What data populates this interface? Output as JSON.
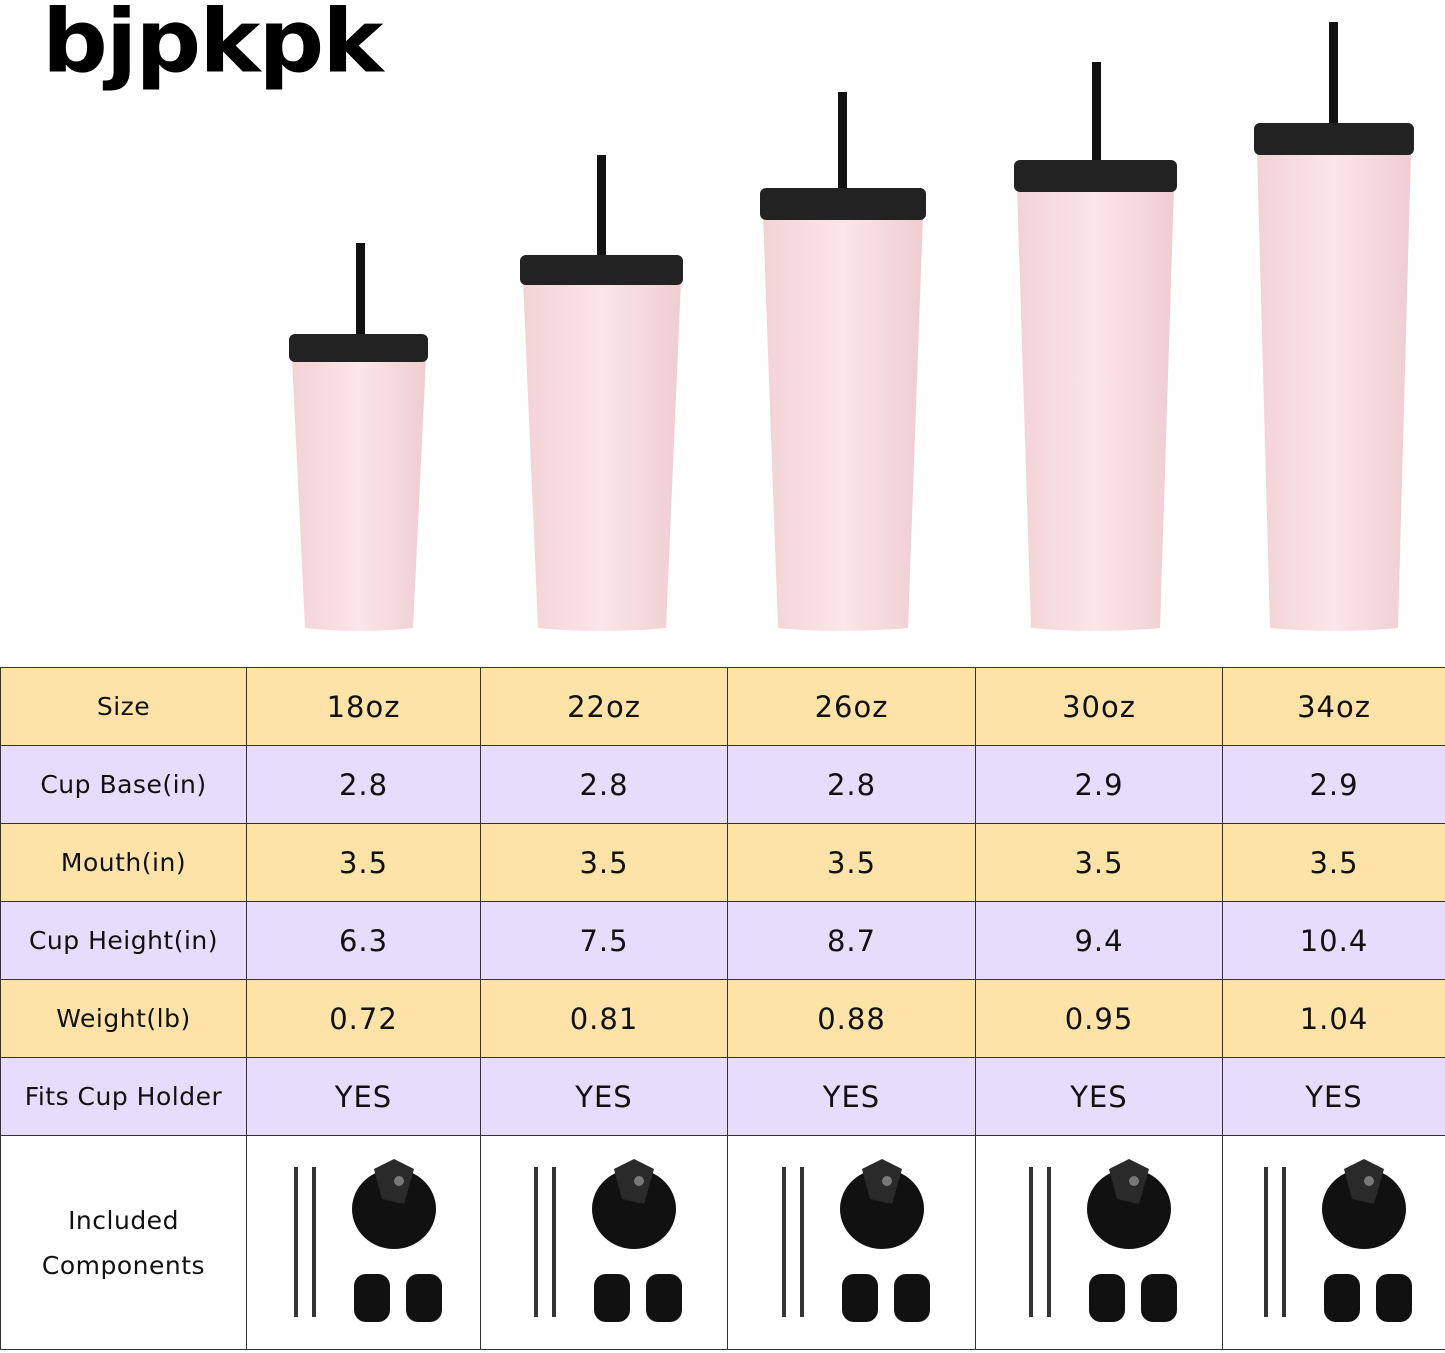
{
  "brand": "bjpkpk",
  "table": {
    "header": [
      "Size",
      "18oz",
      "22oz",
      "26oz",
      "30oz",
      "34oz"
    ],
    "rows": [
      [
        "Cup Base(in)",
        "2.8",
        "2.8",
        "2.8",
        "2.9",
        "2.9"
      ],
      [
        "Mouth(in)",
        "3.5",
        "3.5",
        "3.5",
        "3.5",
        "3.5"
      ],
      [
        "Cup Height(in)",
        "6.3",
        "7.5",
        "8.7",
        "9.4",
        "10.4"
      ],
      [
        "Weight(lb)",
        "0.72",
        "0.81",
        "0.88",
        "0.95",
        "1.04"
      ],
      [
        "Fits Cup Holder",
        "YES",
        "YES",
        "YES",
        "YES",
        "YES"
      ]
    ],
    "components_label": "Included Components"
  }
}
